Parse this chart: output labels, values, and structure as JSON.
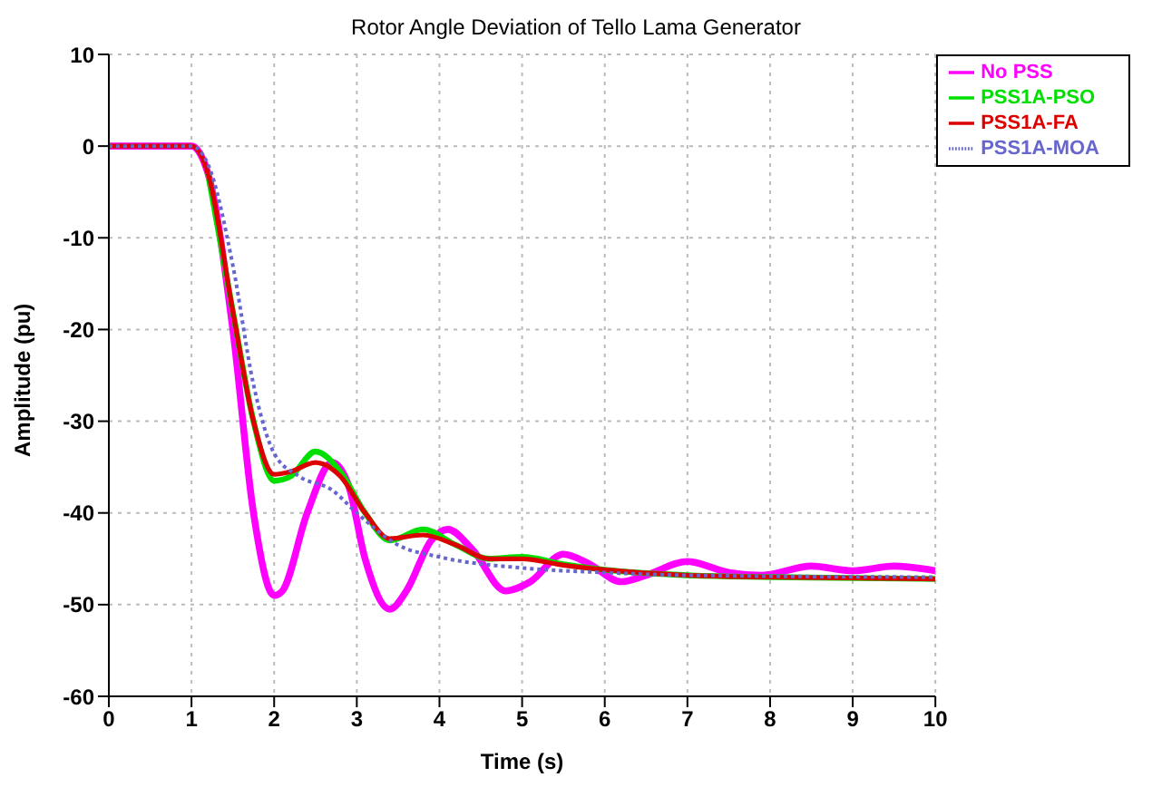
{
  "chart_data": {
    "type": "line",
    "title": "Rotor Angle Deviation of Tello Lama Generator",
    "xlabel": "Time (s)",
    "ylabel": "Amplitude (pu)",
    "xlim": [
      0,
      10
    ],
    "xticks": [
      0,
      1,
      2,
      3,
      4,
      5,
      6,
      7,
      8,
      9,
      10
    ],
    "ylim": [
      -60,
      10
    ],
    "yticks": [
      -60,
      -50,
      -40,
      -30,
      -20,
      -10,
      0,
      10
    ],
    "grid": true,
    "legend": "top right",
    "marker": "none",
    "series": [
      {
        "name": "No PSS",
        "color": "#ff00ff",
        "line_style": "solid",
        "x": [
          0,
          1,
          1.2,
          1.5,
          1.75,
          2.0,
          2.1,
          2.4,
          2.7,
          2.9,
          3.1,
          3.4,
          3.6,
          3.9,
          4.1,
          4.4,
          4.8,
          5.1,
          5.5,
          5.8,
          6.2,
          6.5,
          7.0,
          7.5,
          7.9,
          8.5,
          9.0,
          9.5,
          10
        ],
        "values": [
          0,
          0,
          -3,
          -20,
          -40,
          -49,
          -48.5,
          -40,
          -34.5,
          -37,
          -45,
          -50.5,
          -48.5,
          -43,
          -41.8,
          -44,
          -48.5,
          -47.5,
          -44.5,
          -45.5,
          -47.5,
          -46.8,
          -45.3,
          -46.5,
          -46.8,
          -45.8,
          -46.3,
          -45.8,
          -46.3
        ]
      },
      {
        "name": "PSS1A-PSO",
        "color": "#00e000",
        "line_style": "solid",
        "x": [
          1.2,
          1.5,
          1.75,
          2.0,
          2.2,
          2.5,
          2.8,
          3.1,
          3.4,
          3.8,
          4.2,
          4.6,
          5.0,
          5.5,
          6,
          7,
          8,
          10
        ],
        "values": [
          -3,
          -18,
          -30,
          -36.5,
          -36,
          -33.3,
          -35.5,
          -40,
          -43,
          -41.8,
          -43.5,
          -45,
          -44.8,
          -45.6,
          -46.2,
          -46.8,
          -47,
          -47.2
        ]
      },
      {
        "name": "PSS1A-FA",
        "color": "#dd0000",
        "line_style": "solid",
        "x": [
          0,
          1,
          1.2,
          1.5,
          1.75,
          2.0,
          2.2,
          2.5,
          2.8,
          3.1,
          3.4,
          3.8,
          4.2,
          4.6,
          5.0,
          5.5,
          6,
          7,
          8,
          10
        ],
        "values": [
          0,
          0,
          -3,
          -18,
          -30,
          -35.8,
          -35.5,
          -34.5,
          -36,
          -40,
          -42.8,
          -42.4,
          -43.5,
          -45,
          -45,
          -45.7,
          -46.2,
          -46.8,
          -47,
          -47.2
        ]
      },
      {
        "name": "PSS1A-MOA",
        "color": "#6666cc",
        "line_style": "dotted",
        "x": [
          0,
          1,
          1.2,
          1.5,
          1.75,
          2.0,
          2.3,
          2.7,
          3.0,
          3.5,
          4,
          5,
          6,
          7,
          10
        ],
        "values": [
          0,
          0,
          -2,
          -13,
          -26,
          -33.5,
          -36,
          -37.5,
          -40,
          -43.5,
          -44.8,
          -46,
          -46.5,
          -46.8,
          -47
        ]
      }
    ]
  }
}
